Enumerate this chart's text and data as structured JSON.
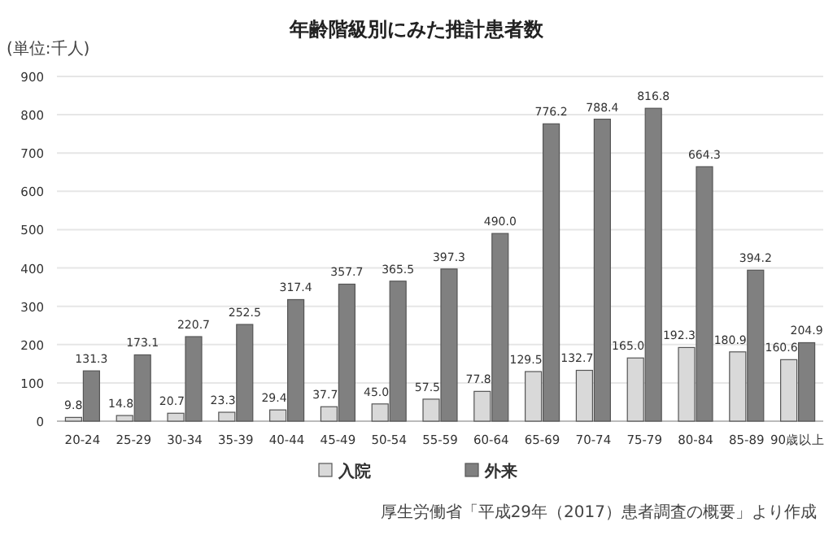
{
  "chart_data": {
    "type": "bar",
    "title": "年齢階級別にみた推計患者数",
    "ylabel": "(単位:千人)",
    "categories": [
      "20-24",
      "25-29",
      "30-34",
      "35-39",
      "40-44",
      "45-49",
      "50-54",
      "55-59",
      "60-64",
      "65-69",
      "70-74",
      "75-79",
      "80-84",
      "85-89",
      "90歳以上"
    ],
    "series": [
      {
        "name": "入院",
        "color": "#d9d9d9",
        "values": [
          9.8,
          14.8,
          20.7,
          23.3,
          29.4,
          37.7,
          45.0,
          57.5,
          77.8,
          129.5,
          132.7,
          165.0,
          192.3,
          180.9,
          160.6
        ],
        "value_labels": [
          "9.8",
          "14.8",
          "20.7",
          "23.3",
          "29.4",
          "37.7",
          "45.0",
          "57.5",
          "77.8",
          "129.5",
          "132.7",
          "165.0",
          "192.3",
          "180.9",
          "160.6"
        ]
      },
      {
        "name": "外来",
        "color": "#808080",
        "values": [
          131.3,
          173.1,
          220.7,
          252.5,
          317.4,
          357.7,
          365.5,
          397.3,
          490.0,
          776.2,
          788.4,
          816.8,
          664.3,
          394.2,
          204.9
        ],
        "value_labels": [
          "131.3",
          "173.1",
          "220.7",
          "252.5",
          "317.4",
          "357.7",
          "365.5",
          "397.3",
          "490.0",
          "776.2",
          "788.4",
          "816.8",
          "664.3",
          "394.2",
          "204.9"
        ]
      }
    ],
    "ylim": [
      0,
      900
    ],
    "yticks": [
      0,
      100,
      200,
      300,
      400,
      500,
      600,
      700,
      800,
      900
    ],
    "grid": "y",
    "legend": "bottom",
    "annotations": [
      "厚生労働省「平成29年（2017）患者調査の概要」より作成"
    ]
  }
}
